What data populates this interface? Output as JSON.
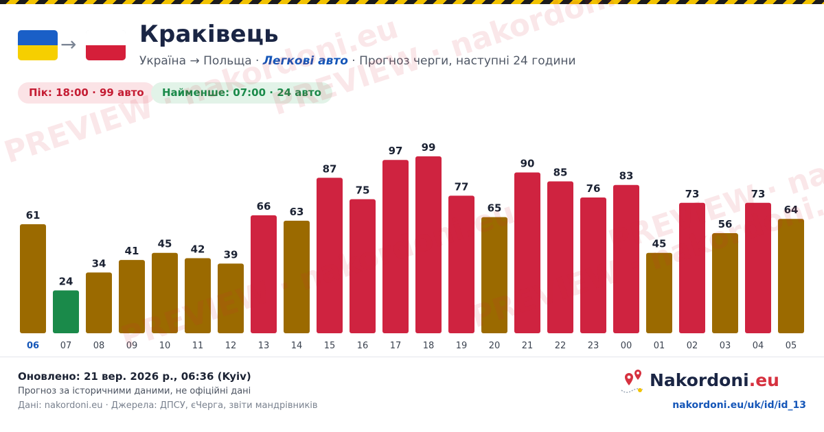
{
  "header": {
    "title": "Краківець",
    "subtitle_route": "Україна → Польща · ",
    "subtitle_vehicle": "Легкові авто",
    "subtitle_rest": " · Прогноз черги, наступні 24 години",
    "arrow": "→"
  },
  "stats": {
    "peak": "Пік: 18:00 · 99 авто",
    "min": "Найменше: 07:00 · 24 авто"
  },
  "footer": {
    "updated": "Оновлено: 21 вер. 2026 р., 06:36 (Kyiv)",
    "note": "Прогноз за історичними даними, не офіційні дані",
    "sources": "Дані: nakordoni.eu · Джерела: ДПСУ, єЧерга, звіти мандрівників",
    "brand_name": "Nakordoni",
    "brand_tld": ".eu",
    "url": "nakordoni.eu/uk/id/id_13"
  },
  "watermark": {
    "text1": "PREVIEW · nakordoni.eu",
    "text2": "PREVIEW · nakordoni.eu",
    "text3": "PREVIEW · nakordoni.eu",
    "text4": "PREVIEW · nakordoni.eu",
    "text5": "PREVIEW · nakordoni.eu"
  },
  "colors": {
    "low": "#1a8a4a",
    "medium": "#9b6a00",
    "high": "#cf2340",
    "current_tick": "#1556b8",
    "tick": "#3b4350",
    "label": "#1b2233"
  },
  "chart_data": {
    "type": "bar",
    "title": "",
    "xlabel": "",
    "ylabel": "",
    "ylim": [
      0,
      99
    ],
    "grid": false,
    "categories": [
      "06",
      "07",
      "08",
      "09",
      "10",
      "11",
      "12",
      "13",
      "14",
      "15",
      "16",
      "17",
      "18",
      "19",
      "20",
      "21",
      "22",
      "23",
      "00",
      "01",
      "02",
      "03",
      "04",
      "05"
    ],
    "values": [
      61,
      24,
      34,
      41,
      45,
      42,
      39,
      66,
      63,
      87,
      75,
      97,
      99,
      77,
      65,
      90,
      85,
      76,
      83,
      45,
      73,
      56,
      73,
      64
    ],
    "levels": [
      "medium",
      "low",
      "medium",
      "medium",
      "medium",
      "medium",
      "medium",
      "high",
      "medium",
      "high",
      "high",
      "high",
      "high",
      "high",
      "medium",
      "high",
      "high",
      "high",
      "high",
      "medium",
      "high",
      "medium",
      "high",
      "medium"
    ],
    "current_index": 0
  }
}
